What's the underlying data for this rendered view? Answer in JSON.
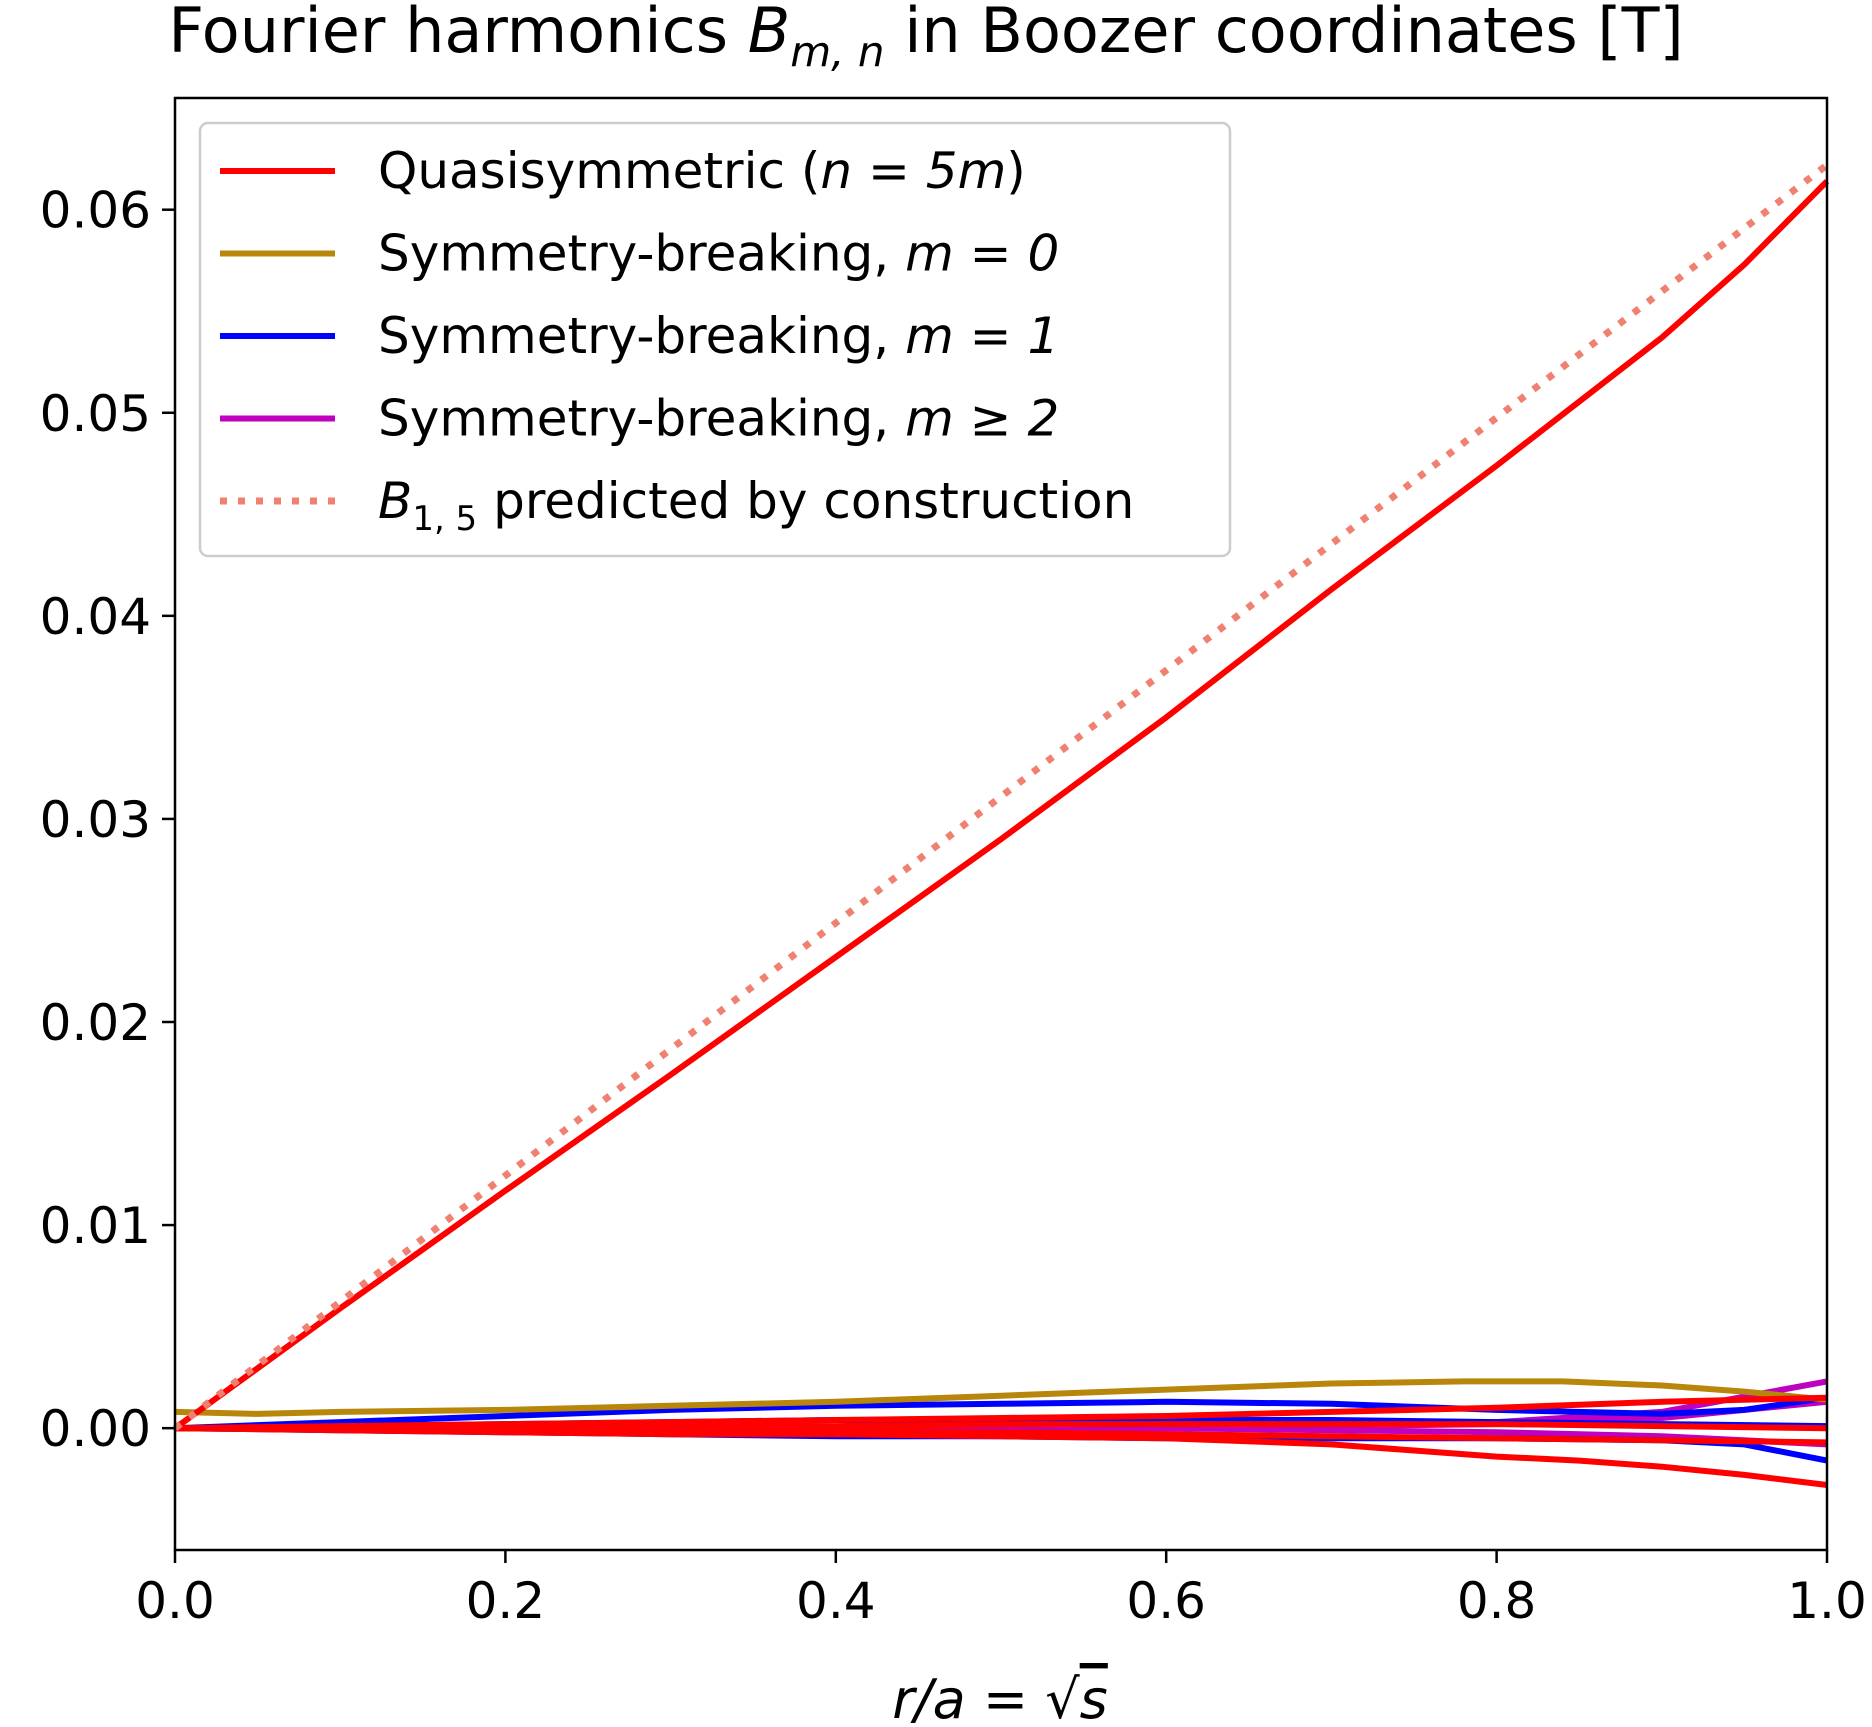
{
  "chart_data": {
    "type": "line",
    "title_prefix": "Fourier harmonics ",
    "title_symbol": "B",
    "title_subscript": "m, n",
    "title_suffix": " in Boozer coordinates [T]",
    "xlabel_prefix": "r/a = ",
    "xlabel_radicand": "s",
    "ylabel": "",
    "xlim": [
      0.0,
      1.0
    ],
    "ylim": [
      -0.006,
      0.0655
    ],
    "xticks": [
      0.0,
      0.2,
      0.4,
      0.6,
      0.8,
      1.0
    ],
    "xtick_labels": [
      "0.0",
      "0.2",
      "0.4",
      "0.6",
      "0.8",
      "1.0"
    ],
    "yticks": [
      0.0,
      0.01,
      0.02,
      0.03,
      0.04,
      0.05,
      0.06
    ],
    "ytick_labels": [
      "0.00",
      "0.01",
      "0.02",
      "0.03",
      "0.04",
      "0.05",
      "0.06"
    ],
    "grid": false,
    "legend_position": "upper-left",
    "legend": [
      {
        "label": "Quasisymmetric (",
        "math": "n = 5m",
        "tail": ")",
        "color": "#ff0000",
        "style": "solid"
      },
      {
        "label": "Symmetry-breaking, ",
        "math": "m = 0",
        "tail": "",
        "color": "#b8860b",
        "style": "solid"
      },
      {
        "label": "Symmetry-breaking, ",
        "math": "m = 1",
        "tail": "",
        "color": "#0000ff",
        "style": "solid"
      },
      {
        "label": "Symmetry-breaking, ",
        "math": "m ≥ 2",
        "tail": "",
        "color": "#bf00bf",
        "style": "solid"
      },
      {
        "label": " predicted by construction",
        "math": "B",
        "math_sub": "1, 5",
        "tail": "",
        "color": "#f08070",
        "style": "dotted"
      }
    ],
    "series": [
      {
        "group": "m >= 2",
        "color": "#bf00bf",
        "x": [
          0.0,
          0.1,
          0.2,
          0.3,
          0.4,
          0.5,
          0.6,
          0.7,
          0.8,
          0.9,
          1.0
        ],
        "y": [
          0.0,
          0.0,
          0.0,
          0.0,
          0.0,
          0.0,
          0.0,
          0.0001,
          0.0003,
          0.0008,
          0.0023
        ]
      },
      {
        "group": "m >= 2",
        "color": "#bf00bf",
        "x": [
          0.0,
          0.1,
          0.2,
          0.3,
          0.4,
          0.5,
          0.6,
          0.7,
          0.8,
          0.9,
          1.0
        ],
        "y": [
          0.0,
          0.0,
          0.0,
          0.0,
          0.0,
          0.0,
          0.0,
          -0.0001,
          -0.0002,
          -0.0004,
          -0.0008
        ]
      },
      {
        "group": "m >= 2",
        "color": "#bf00bf",
        "x": [
          0.0,
          0.1,
          0.2,
          0.3,
          0.4,
          0.5,
          0.6,
          0.7,
          0.8,
          0.9,
          1.0
        ],
        "y": [
          0.0,
          0.0,
          0.0,
          0.0,
          0.0,
          0.0,
          0.0,
          0.0001,
          0.0002,
          0.0005,
          0.0013
        ]
      },
      {
        "group": "m = 1",
        "color": "#0000ff",
        "x": [
          0.0,
          0.1,
          0.2,
          0.3,
          0.4,
          0.5,
          0.6,
          0.7,
          0.8,
          0.9,
          0.95,
          1.0
        ],
        "y": [
          0.0,
          0.0003,
          0.0006,
          0.0009,
          0.0011,
          0.0012,
          0.0013,
          0.0012,
          0.0009,
          0.0007,
          0.0009,
          0.0015
        ]
      },
      {
        "group": "m = 1",
        "color": "#0000ff",
        "x": [
          0.0,
          0.1,
          0.2,
          0.3,
          0.4,
          0.5,
          0.6,
          0.7,
          0.8,
          0.9,
          0.95,
          1.0
        ],
        "y": [
          0.0,
          -0.0001,
          -0.0002,
          -0.0003,
          -0.0004,
          -0.0004,
          -0.0005,
          -0.0005,
          -0.0005,
          -0.0006,
          -0.0008,
          -0.0016
        ]
      },
      {
        "group": "m = 1",
        "color": "#0000ff",
        "x": [
          0.0,
          0.1,
          0.2,
          0.3,
          0.4,
          0.5,
          0.6,
          0.7,
          0.8,
          0.9,
          1.0
        ],
        "y": [
          0.0,
          0.0001,
          0.0002,
          0.0003,
          0.0004,
          0.0004,
          0.0004,
          0.0004,
          0.0003,
          0.0002,
          0.0001
        ]
      },
      {
        "group": "m = 0",
        "color": "#b8860b",
        "x": [
          0.0,
          0.05,
          0.1,
          0.2,
          0.3,
          0.4,
          0.5,
          0.6,
          0.7,
          0.78,
          0.84,
          0.9,
          0.95,
          1.0
        ],
        "y": [
          0.0008,
          0.0007,
          0.0008,
          0.0009,
          0.0011,
          0.0013,
          0.0016,
          0.0019,
          0.0022,
          0.0023,
          0.0023,
          0.0021,
          0.0018,
          0.0014
        ]
      },
      {
        "group": "quasisymmetric",
        "color": "#ff0000",
        "x": [
          0.0,
          0.1,
          0.2,
          0.3,
          0.4,
          0.5,
          0.6,
          0.7,
          0.8,
          0.9,
          1.0
        ],
        "y": [
          0.0,
          0.0001,
          0.0002,
          0.0003,
          0.0004,
          0.0005,
          0.0006,
          0.0008,
          0.001,
          0.0013,
          0.0015
        ]
      },
      {
        "group": "quasisymmetric",
        "color": "#ff0000",
        "x": [
          0.0,
          0.1,
          0.2,
          0.3,
          0.4,
          0.5,
          0.6,
          0.7,
          0.8,
          0.9,
          1.0
        ],
        "y": [
          0.0,
          0.0,
          0.0,
          -0.0001,
          -0.0001,
          -0.0002,
          -0.0003,
          -0.0004,
          -0.0005,
          -0.0006,
          -0.0007
        ]
      },
      {
        "group": "quasisymmetric",
        "color": "#ff0000",
        "x": [
          0.0,
          0.1,
          0.2,
          0.3,
          0.4,
          0.5,
          0.6,
          0.7,
          0.8,
          0.9,
          1.0
        ],
        "y": [
          0.0,
          0.0,
          0.0,
          0.0001,
          0.0001,
          0.0002,
          0.0002,
          0.0002,
          0.0002,
          0.0001,
          0.0
        ]
      },
      {
        "group": "quasisymmetric",
        "color": "#ff0000",
        "x": [
          0.0,
          0.1,
          0.2,
          0.3,
          0.4,
          0.5,
          0.6,
          0.7,
          0.75,
          0.8,
          0.85,
          0.9,
          0.95,
          1.0
        ],
        "y": [
          0.0,
          -0.0001,
          -0.0002,
          -0.0003,
          -0.0003,
          -0.0004,
          -0.0005,
          -0.0008,
          -0.0011,
          -0.0014,
          -0.0016,
          -0.0019,
          -0.0023,
          -0.0028
        ]
      },
      {
        "group": "quasisymmetric",
        "color": "#ff0000",
        "x": [
          0.0,
          0.1,
          0.2,
          0.3,
          0.4,
          0.5,
          0.6,
          0.7,
          0.8,
          0.9,
          0.95,
          1.0
        ],
        "y": [
          0.0,
          0.0059,
          0.0117,
          0.0174,
          0.0232,
          0.029,
          0.035,
          0.0413,
          0.0474,
          0.0537,
          0.0573,
          0.0614
        ]
      },
      {
        "group": "predicted",
        "color": "#f08070",
        "style": "dotted",
        "x": [
          0.0,
          1.0
        ],
        "y": [
          0.0,
          0.0622
        ]
      }
    ]
  }
}
